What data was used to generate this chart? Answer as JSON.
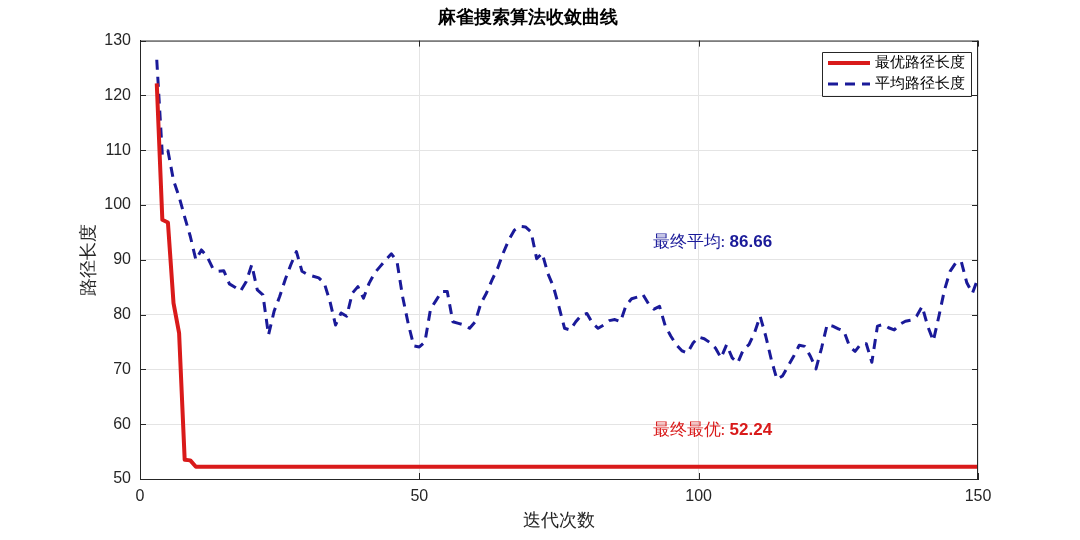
{
  "chart_data": {
    "type": "line",
    "title": "麻雀搜索算法收敛曲线",
    "xlabel": "迭代次数",
    "ylabel": "路径长度",
    "x": [
      3,
      4,
      5,
      6,
      7,
      8,
      9,
      10,
      11,
      12,
      13,
      14,
      15,
      16,
      17,
      18,
      19,
      20,
      21,
      22,
      23,
      24,
      25,
      26,
      27,
      28,
      29,
      30,
      31,
      32,
      33,
      34,
      35,
      36,
      37,
      38,
      39,
      40,
      41,
      42,
      43,
      44,
      45,
      46,
      47,
      48,
      49,
      50,
      51,
      52,
      53,
      54,
      55,
      56,
      57,
      58,
      59,
      60,
      61,
      62,
      63,
      64,
      65,
      66,
      67,
      68,
      69,
      70,
      71,
      72,
      73,
      74,
      75,
      76,
      77,
      78,
      79,
      80,
      81,
      82,
      83,
      84,
      85,
      86,
      87,
      88,
      89,
      90,
      91,
      92,
      93,
      94,
      95,
      96,
      97,
      98,
      99,
      100,
      101,
      102,
      103,
      104,
      105,
      106,
      107,
      108,
      109,
      110,
      111,
      112,
      113,
      114,
      115,
      116,
      117,
      118,
      119,
      120,
      121,
      122,
      123,
      124,
      125,
      126,
      127,
      128,
      129,
      130,
      131,
      132,
      133,
      134,
      135,
      136,
      137,
      138,
      139,
      140,
      141,
      142,
      143,
      144,
      145,
      146,
      147,
      148,
      149,
      150
    ],
    "series": [
      {
        "name": "最优路径长度",
        "color": "#d91a1a",
        "line_style": "solid",
        "x": [
          3,
          4,
          5,
          6,
          7,
          8,
          9,
          10,
          150
        ],
        "values": [
          122.2,
          97.3,
          96.8,
          82.1,
          76.6,
          53.5,
          53.4,
          52.24,
          52.24
        ]
      },
      {
        "name": "平均路径长度",
        "color": "#1a1a99",
        "line_style": "dashed",
        "values": [
          126.5,
          109.1,
          109.9,
          104.5,
          101.5,
          97.8,
          94.3,
          90.0,
          91.8,
          90.6,
          88.5,
          87.9,
          88.0,
          85.6,
          85.0,
          84.3,
          86.0,
          89.1,
          84.5,
          83.6,
          76.3,
          80.6,
          83.3,
          86.4,
          89.1,
          91.5,
          87.9,
          87.3,
          87.0,
          86.7,
          85.7,
          82.4,
          78.1,
          80.3,
          79.7,
          83.9,
          85.1,
          83.0,
          85.7,
          87.6,
          88.8,
          90.0,
          91.1,
          89.7,
          83.3,
          78.4,
          74.3,
          74.1,
          75.0,
          81.0,
          82.6,
          84.2,
          84.2,
          78.7,
          78.4,
          78.1,
          77.5,
          78.7,
          82.0,
          83.9,
          86.3,
          88.4,
          91.2,
          93.6,
          95.4,
          96.1,
          96.0,
          95.1,
          90.2,
          91.2,
          87.5,
          85.1,
          81.4,
          77.5,
          77.2,
          78.7,
          79.9,
          80.2,
          78.4,
          77.5,
          78.1,
          78.9,
          79.1,
          78.7,
          81.7,
          82.9,
          83.2,
          83.7,
          82.0,
          81.0,
          81.5,
          78.0,
          76.1,
          74.5,
          73.4,
          73.0,
          74.8,
          75.9,
          75.6,
          74.9,
          73.9,
          72.1,
          74.5,
          72.1,
          71.2,
          73.6,
          74.5,
          76.7,
          79.7,
          76.1,
          71.8,
          68.2,
          68.8,
          70.6,
          72.4,
          74.4,
          74.2,
          72.4,
          70.1,
          73.9,
          78.2,
          77.9,
          77.4,
          77.0,
          74.2,
          73.3,
          74.6,
          74.7,
          71.3,
          77.9,
          78.2,
          77.6,
          77.2,
          78.2,
          78.8,
          79.0,
          79.7,
          81.5,
          77.9,
          75.2,
          79.7,
          84.5,
          87.9,
          89.4,
          89.7,
          85.8,
          83.9,
          86.66
        ]
      }
    ],
    "xlim": [
      0,
      150
    ],
    "ylim": [
      50,
      130
    ],
    "xticks": [
      0,
      50,
      100,
      150
    ],
    "yticks": [
      50,
      60,
      70,
      80,
      90,
      100,
      110,
      120,
      130
    ],
    "grid": true,
    "legend": "top right",
    "annotations": [
      "最终最优: 52.24",
      "最终平均: 86.66"
    ]
  }
}
